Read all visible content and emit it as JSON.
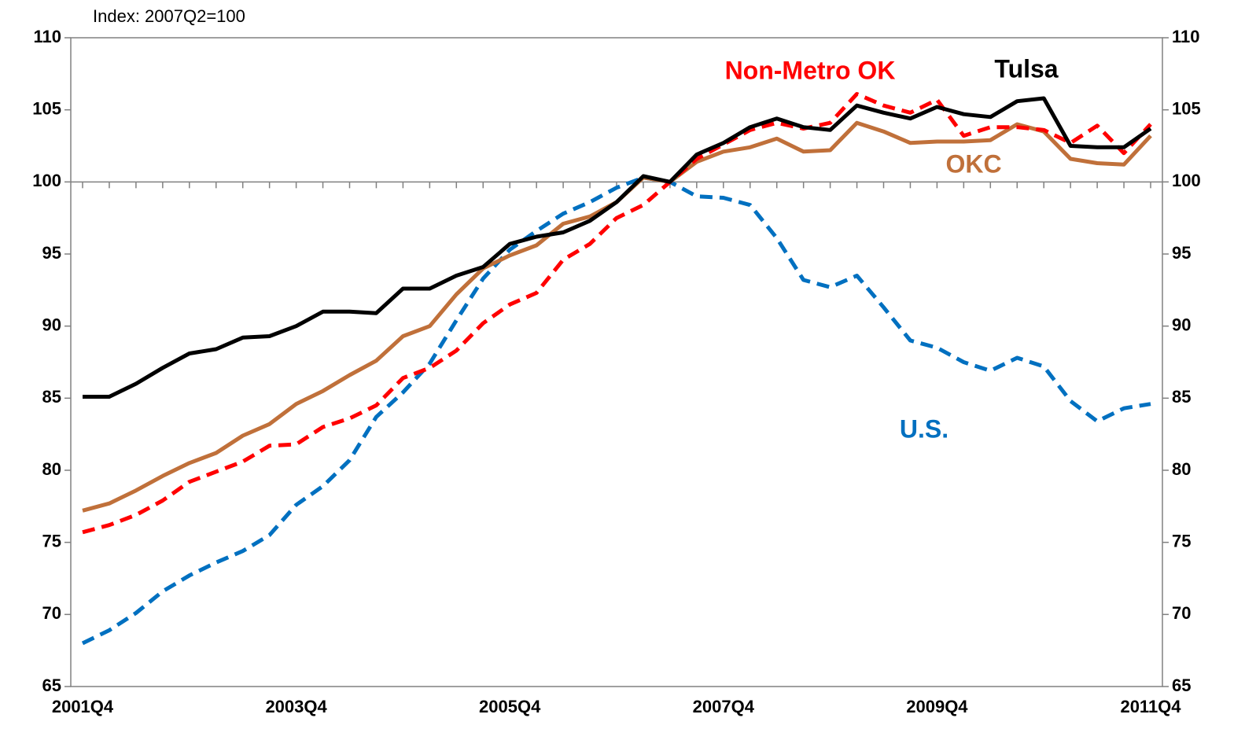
{
  "chart_data": {
    "type": "line",
    "subtitle": "Index: 2007Q2=100",
    "categories": [
      "2001Q4",
      null,
      null,
      null,
      null,
      null,
      null,
      null,
      "2003Q4",
      null,
      null,
      null,
      null,
      null,
      null,
      null,
      "2005Q4",
      null,
      null,
      null,
      null,
      null,
      null,
      null,
      "2007Q4",
      null,
      null,
      null,
      null,
      null,
      null,
      null,
      "2009Q4",
      null,
      null,
      null,
      null,
      null,
      null,
      null,
      "2011Q4"
    ],
    "series": [
      {
        "name": "U.S.",
        "color": "#0070c0",
        "dashed": true,
        "values": [
          68.0,
          68.9,
          70.1,
          71.6,
          72.7,
          73.6,
          74.4,
          75.5,
          77.6,
          78.9,
          80.7,
          83.7,
          85.4,
          87.4,
          90.4,
          93.3,
          95.3,
          96.6,
          97.8,
          98.6,
          99.6,
          100.3,
          100.0,
          99.0,
          98.9,
          98.4,
          96.1,
          93.2,
          92.7,
          93.5,
          91.3,
          89.0,
          88.5,
          87.5,
          86.9,
          87.8,
          87.2,
          84.8,
          83.4,
          84.3,
          84.6
        ]
      },
      {
        "name": "OKC",
        "color": "#c0703a",
        "dashed": false,
        "values": [
          77.2,
          77.7,
          78.6,
          79.6,
          80.5,
          81.2,
          82.4,
          83.2,
          84.6,
          85.5,
          86.6,
          87.6,
          89.3,
          90.0,
          92.2,
          94.0,
          94.9,
          95.6,
          97.1,
          97.6,
          98.6,
          100.3,
          100.0,
          101.4,
          102.1,
          102.4,
          103.0,
          102.1,
          102.2,
          104.1,
          103.5,
          102.7,
          102.8,
          102.8,
          102.9,
          104.0,
          103.5,
          101.6,
          101.3,
          101.2,
          103.2
        ]
      },
      {
        "name": "Non-Metro OK",
        "color": "#ff0000",
        "dashed": true,
        "values": [
          75.7,
          76.2,
          76.9,
          77.9,
          79.2,
          79.9,
          80.6,
          81.7,
          81.8,
          83.0,
          83.6,
          84.5,
          86.4,
          87.1,
          88.3,
          90.2,
          91.5,
          92.3,
          94.6,
          95.7,
          97.5,
          98.4,
          100.0,
          101.6,
          102.6,
          103.6,
          104.1,
          103.7,
          104.1,
          106.1,
          105.3,
          104.8,
          105.7,
          103.2,
          103.8,
          103.8,
          103.6,
          102.7,
          103.9,
          102.0,
          104.0
        ]
      },
      {
        "name": "Tulsa",
        "color": "#000000",
        "dashed": false,
        "values": [
          85.1,
          85.1,
          86.0,
          87.1,
          88.1,
          88.4,
          89.2,
          89.3,
          90.0,
          91.0,
          91.0,
          90.9,
          92.6,
          92.6,
          93.5,
          94.1,
          95.7,
          96.2,
          96.5,
          97.3,
          98.6,
          100.4,
          100.0,
          101.9,
          102.7,
          103.8,
          104.4,
          103.8,
          103.6,
          105.3,
          104.8,
          104.4,
          105.2,
          104.7,
          104.5,
          105.6,
          105.8,
          102.5,
          102.4,
          102.4,
          103.7
        ]
      }
    ],
    "ylim": [
      65,
      110
    ],
    "yticks": [
      65,
      70,
      75,
      80,
      85,
      90,
      95,
      100,
      105,
      110
    ],
    "y2lim": [
      65,
      110
    ],
    "y2ticks": [
      65,
      70,
      75,
      80,
      85,
      90,
      95,
      100,
      105,
      110
    ],
    "x_axis_crosses": 100,
    "grid": false
  }
}
